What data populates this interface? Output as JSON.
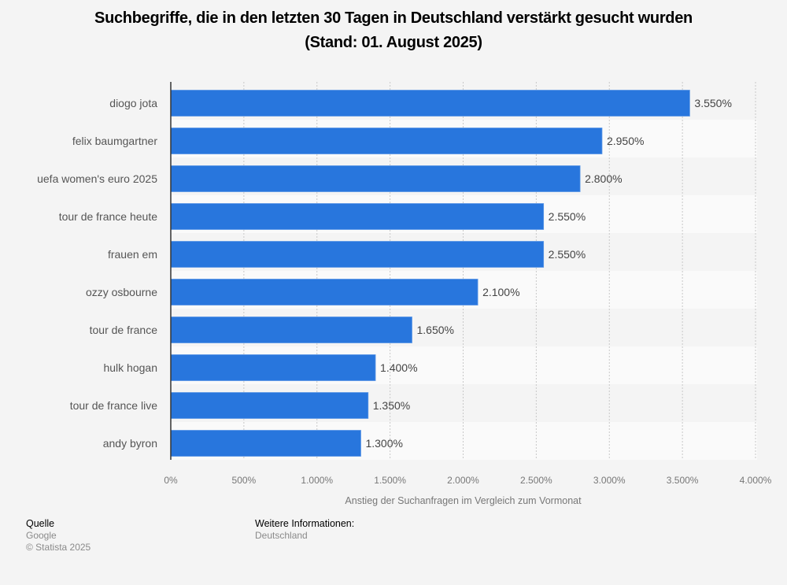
{
  "chart_data": {
    "type": "bar",
    "orientation": "horizontal",
    "title": [
      "Suchbegriffe, die in den letzten 30 Tagen in Deutschland verstärkt gesucht wurden",
      "(Stand: 01. August 2025)"
    ],
    "xlabel": "Anstieg der Suchanfragen im Vergleich zum Vormonat",
    "ylabel": "",
    "categories": [
      "diogo jota",
      "felix baumgartner",
      "uefa women's euro 2025",
      "tour de france heute",
      "frauen em",
      "ozzy osbourne",
      "tour de france",
      "hulk hogan",
      "tour de france live",
      "andy byron"
    ],
    "values": [
      3550,
      2950,
      2800,
      2550,
      2550,
      2100,
      1650,
      1400,
      1350,
      1300
    ],
    "value_labels": [
      "3.550%",
      "2.950%",
      "2.800%",
      "2.550%",
      "2.550%",
      "2.100%",
      "1.650%",
      "1.400%",
      "1.350%",
      "1.300%"
    ],
    "xlim": [
      0,
      4000
    ],
    "xticks": [
      0,
      500,
      1000,
      1500,
      2000,
      2500,
      3000,
      3500,
      4000
    ],
    "xtick_labels": [
      "0%",
      "500%",
      "1.000%",
      "1.500%",
      "2.000%",
      "2.500%",
      "3.000%",
      "3.500%",
      "4.000%"
    ],
    "grid": true,
    "bar_color": "#2876dd"
  },
  "footer": {
    "source_heading": "Quelle",
    "source_lines": [
      "Google",
      "© Statista 2025"
    ],
    "info_heading": "Weitere Informationen:",
    "info_lines": [
      "Deutschland"
    ]
  }
}
